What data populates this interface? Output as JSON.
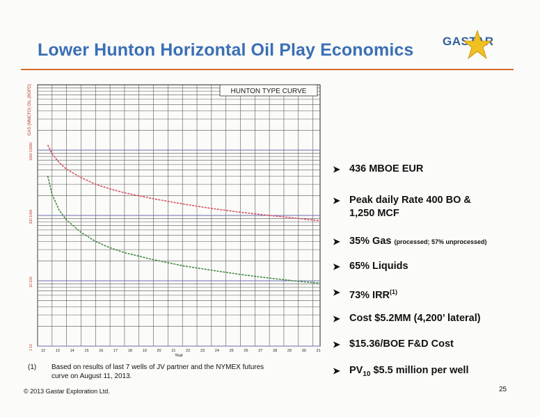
{
  "title": "Lower Hunton Horizontal Oil Play Economics",
  "logo": {
    "text": "GASTAR"
  },
  "colors": {
    "title": "#3a6fb5",
    "rule": "#d46a2a",
    "gas_curve": "#d4505f",
    "oil_curve": "#3e8a3e",
    "star": "#f0c020"
  },
  "chart_data": {
    "type": "line",
    "title": "HUNTON TYPE CURVE",
    "xlabel": "Year",
    "ylabel": "GAS (MMCFD) OIL (BOPD)",
    "yscale": "log",
    "x_ticks": [
      "12",
      "13",
      "14",
      "15",
      "16",
      "17",
      "18",
      "19",
      "20",
      "21",
      "22",
      "23",
      "24",
      "25",
      "26",
      "27",
      "28",
      "29",
      "30",
      "31"
    ],
    "y_ticks": [
      "1000 10000",
      "100 1000",
      "10 100",
      "1 10"
    ],
    "xlim": [
      12,
      31.5
    ],
    "ylim": [
      1,
      10000
    ],
    "grid": true,
    "series": [
      {
        "color": "gas_curve",
        "x": [
          12.7,
          13,
          13.5,
          14,
          15,
          16,
          17,
          18,
          20,
          22,
          24,
          26,
          28,
          30,
          31.5
        ],
        "y": [
          1200,
          880,
          640,
          510,
          380,
          300,
          255,
          222,
          180,
          150,
          128,
          112,
          100,
          90,
          83
        ]
      },
      {
        "color": "oil_curve",
        "x": [
          12.7,
          13,
          13.5,
          14,
          15,
          16,
          17,
          18,
          20,
          22,
          24,
          26,
          28,
          30,
          31.5
        ],
        "y": [
          400,
          210,
          120,
          85,
          55,
          40,
          32,
          27,
          21,
          17,
          14.5,
          12.5,
          11,
          9.8,
          9.2
        ]
      }
    ]
  },
  "bullets": [
    {
      "main": "436 MBOE EUR"
    },
    {
      "main": "Peak daily Rate 400 BO &",
      "line2": "1,250 MCF"
    },
    {
      "main": "35% Gas ",
      "small": "(processed; 57% unprocessed)"
    },
    {
      "main": "65% Liquids"
    },
    {
      "main": "73% IRR",
      "sup": "(1)"
    },
    {
      "main": "Cost $5.2MM (4,200’ lateral)"
    },
    {
      "main": "$15.36/BOE F&D Cost"
    },
    {
      "pre": "PV",
      "sub": "10",
      "main": " $5.5 million per well"
    }
  ],
  "footnote": {
    "num": "(1)",
    "text": "Based on results of last 7 wells of JV partner and the NYMEX futures curve on August 11, 2013."
  },
  "copyright": "© 2013 Gastar Exploration Ltd.",
  "page_number": "25"
}
